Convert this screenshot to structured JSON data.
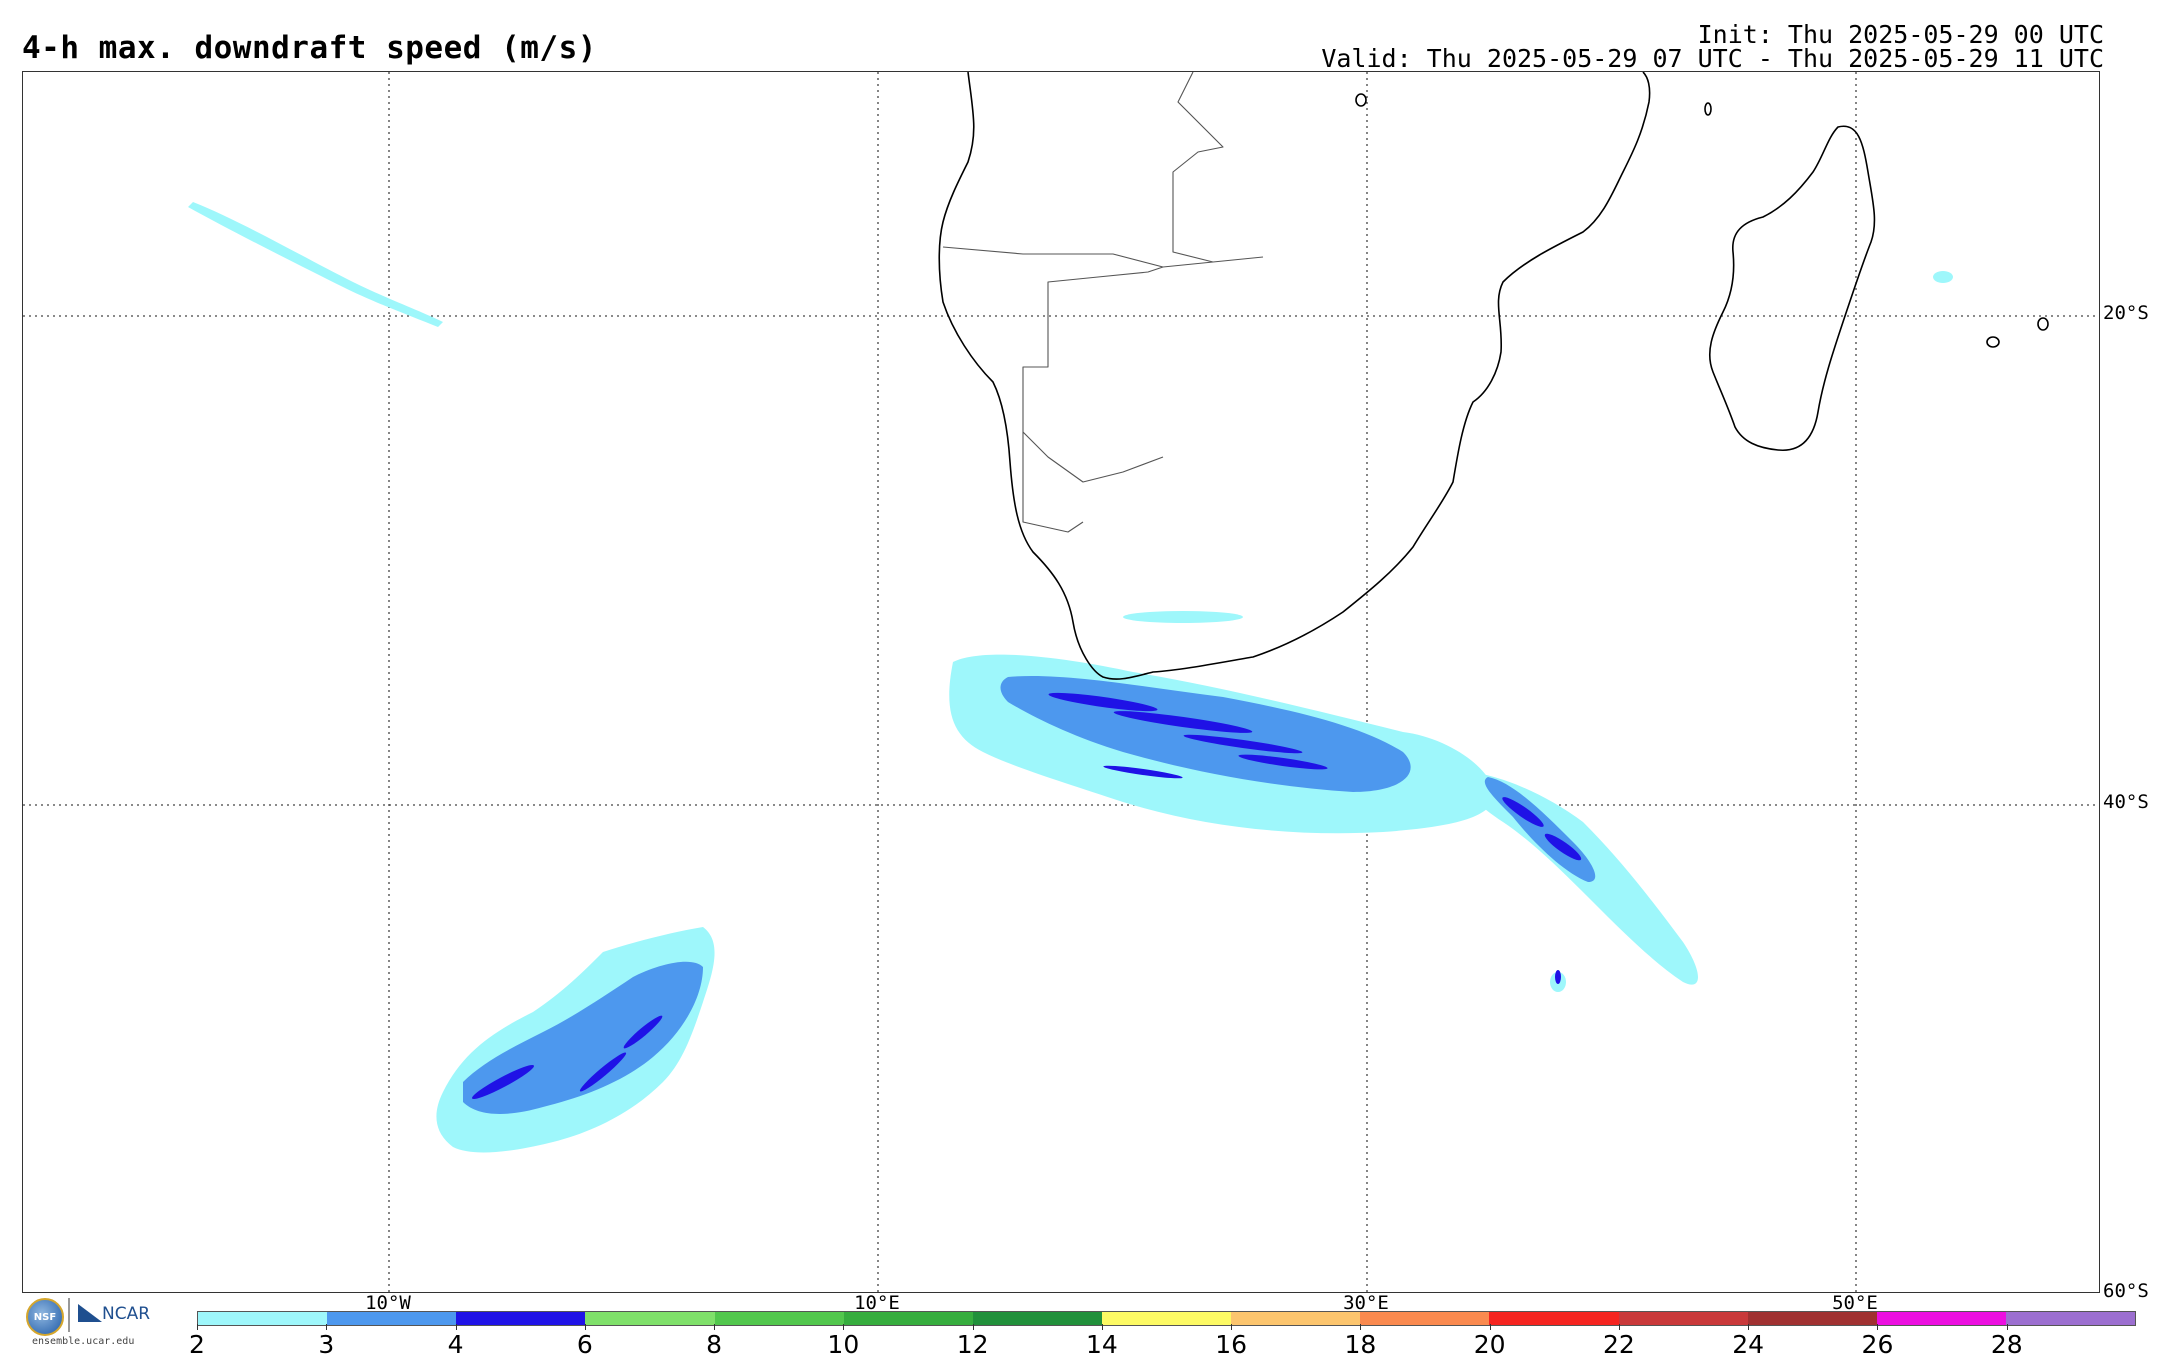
{
  "header": {
    "title": "4-h max. downdraft speed (m/s)",
    "init": "Init: Thu 2025-05-29 00 UTC",
    "valid": "Valid: Thu 2025-05-29 07 UTC - Thu 2025-05-29 11 UTC"
  },
  "map": {
    "lat_labels": [
      "20°S",
      "40°S",
      "60°S"
    ],
    "lon_labels": [
      "10°W",
      "10°E",
      "30°E",
      "50°E"
    ],
    "gridlines": "dotted",
    "coastline_color": "#000000",
    "border_color": "#555555"
  },
  "colorbar": {
    "tick_labels": [
      "2",
      "3",
      "4",
      "6",
      "8",
      "10",
      "12",
      "14",
      "16",
      "18",
      "20",
      "22",
      "24",
      "26",
      "28"
    ],
    "colors": [
      "#9ef7fb",
      "#4d98ee",
      "#1f12e6",
      "#7fe06a",
      "#52c74d",
      "#36ad3e",
      "#21903b",
      "#fdfa64",
      "#fcc56e",
      "#fa8a4f",
      "#f5241f",
      "#c9393a",
      "#a03131",
      "#ec0fe0",
      "#9c6fd0"
    ]
  },
  "logo": {
    "nsf": "NSF",
    "ncar": "NCAR",
    "url": "ensemble.ucar.edu"
  }
}
